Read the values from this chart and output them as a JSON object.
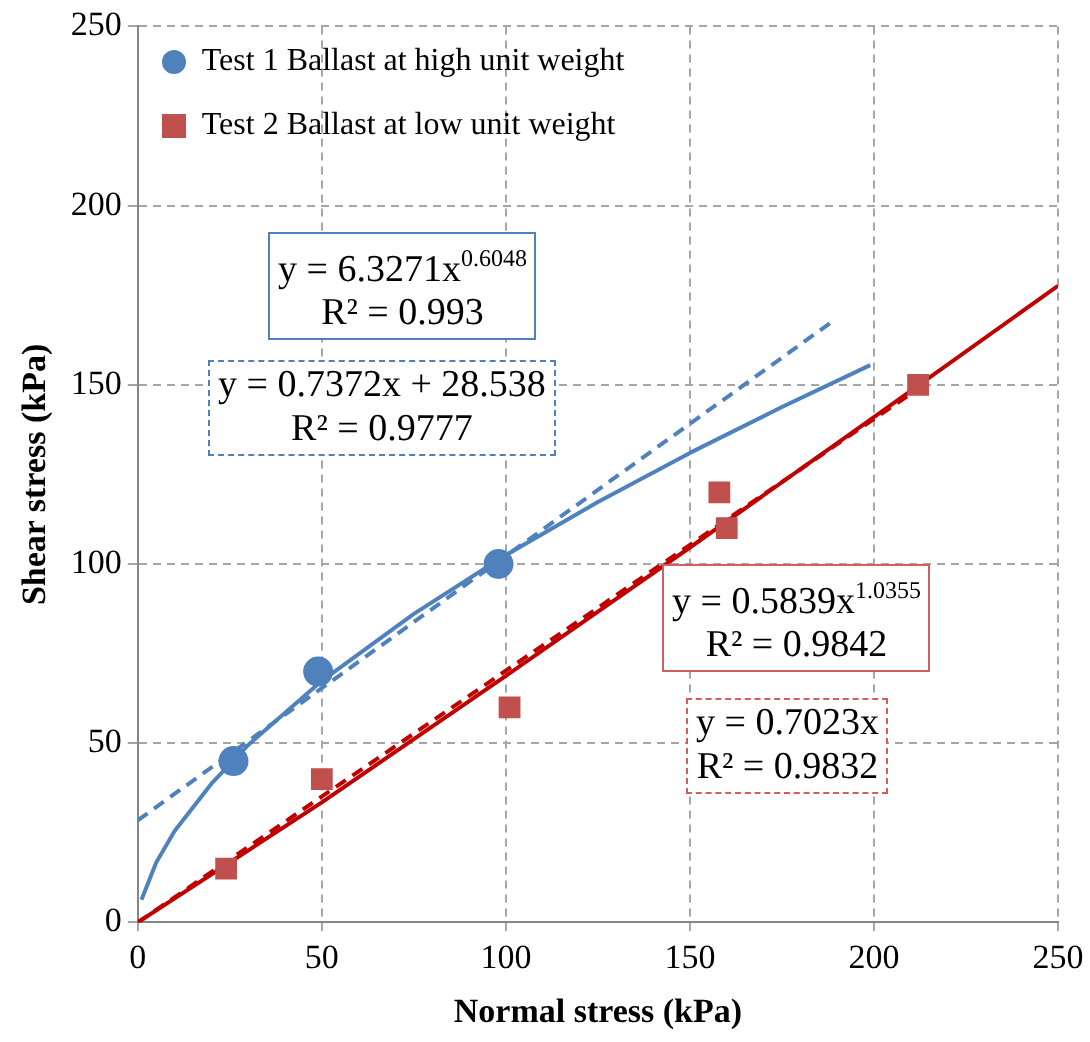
{
  "chart_data": {
    "type": "scatter",
    "xlabel": "Normal stress (kPa)",
    "ylabel": "Shear stress (kPa)",
    "xlim": [
      0,
      250
    ],
    "xticks": [
      0,
      50,
      100,
      150,
      200,
      250
    ],
    "ylim": [
      0,
      250
    ],
    "yticks": [
      0,
      50,
      100,
      150,
      200,
      250
    ],
    "grid": true,
    "legend": "top left",
    "series": [
      {
        "name": "Test 1 Ballast at high unit weight",
        "color": "#4f81bd",
        "marker": "circle",
        "x": [
          26,
          49,
          98
        ],
        "values": [
          45,
          70,
          100
        ]
      },
      {
        "name": "Test 2 Ballast at low unit weight",
        "color": "#c0504d",
        "marker": "square",
        "x": [
          24,
          50,
          101,
          158,
          160,
          212
        ],
        "values": [
          15,
          40,
          60,
          120,
          110,
          150
        ]
      },
      {
        "type": "line",
        "color": "#4f81bd",
        "line_style": "solid",
        "x": [
          1,
          5,
          10,
          20,
          30,
          50,
          75,
          100,
          125,
          150,
          175,
          199
        ],
        "values": [
          6.3,
          16.7,
          25.5,
          38.7,
          49.5,
          67.4,
          86.1,
          102.5,
          117.3,
          131.0,
          143.8,
          155.5
        ]
      },
      {
        "type": "line",
        "color": "#4f81bd",
        "line_style": "dashed",
        "x": [
          0,
          189
        ],
        "values": [
          28.5,
          167.9
        ]
      },
      {
        "type": "line",
        "color": "#c00000",
        "line_style": "solid",
        "x": [
          0,
          50,
          100,
          150,
          200,
          250
        ],
        "values": [
          0,
          33.5,
          68.8,
          104.6,
          141.0,
          177.6
        ]
      },
      {
        "type": "line",
        "color": "#c00000",
        "line_style": "dashed",
        "x": [
          0,
          212
        ],
        "values": [
          0,
          148.9
        ]
      }
    ],
    "annotations": [
      "y = 6.3271x$^{0.6048}$\nR² = 0.993",
      "y = 0.7372x + 28.538\nR² = 0.9777",
      "y = 0.5839x$^{1.0355}$\nR² = 0.9842",
      "y = 0.7023x\nR² = 0.9832"
    ]
  }
}
